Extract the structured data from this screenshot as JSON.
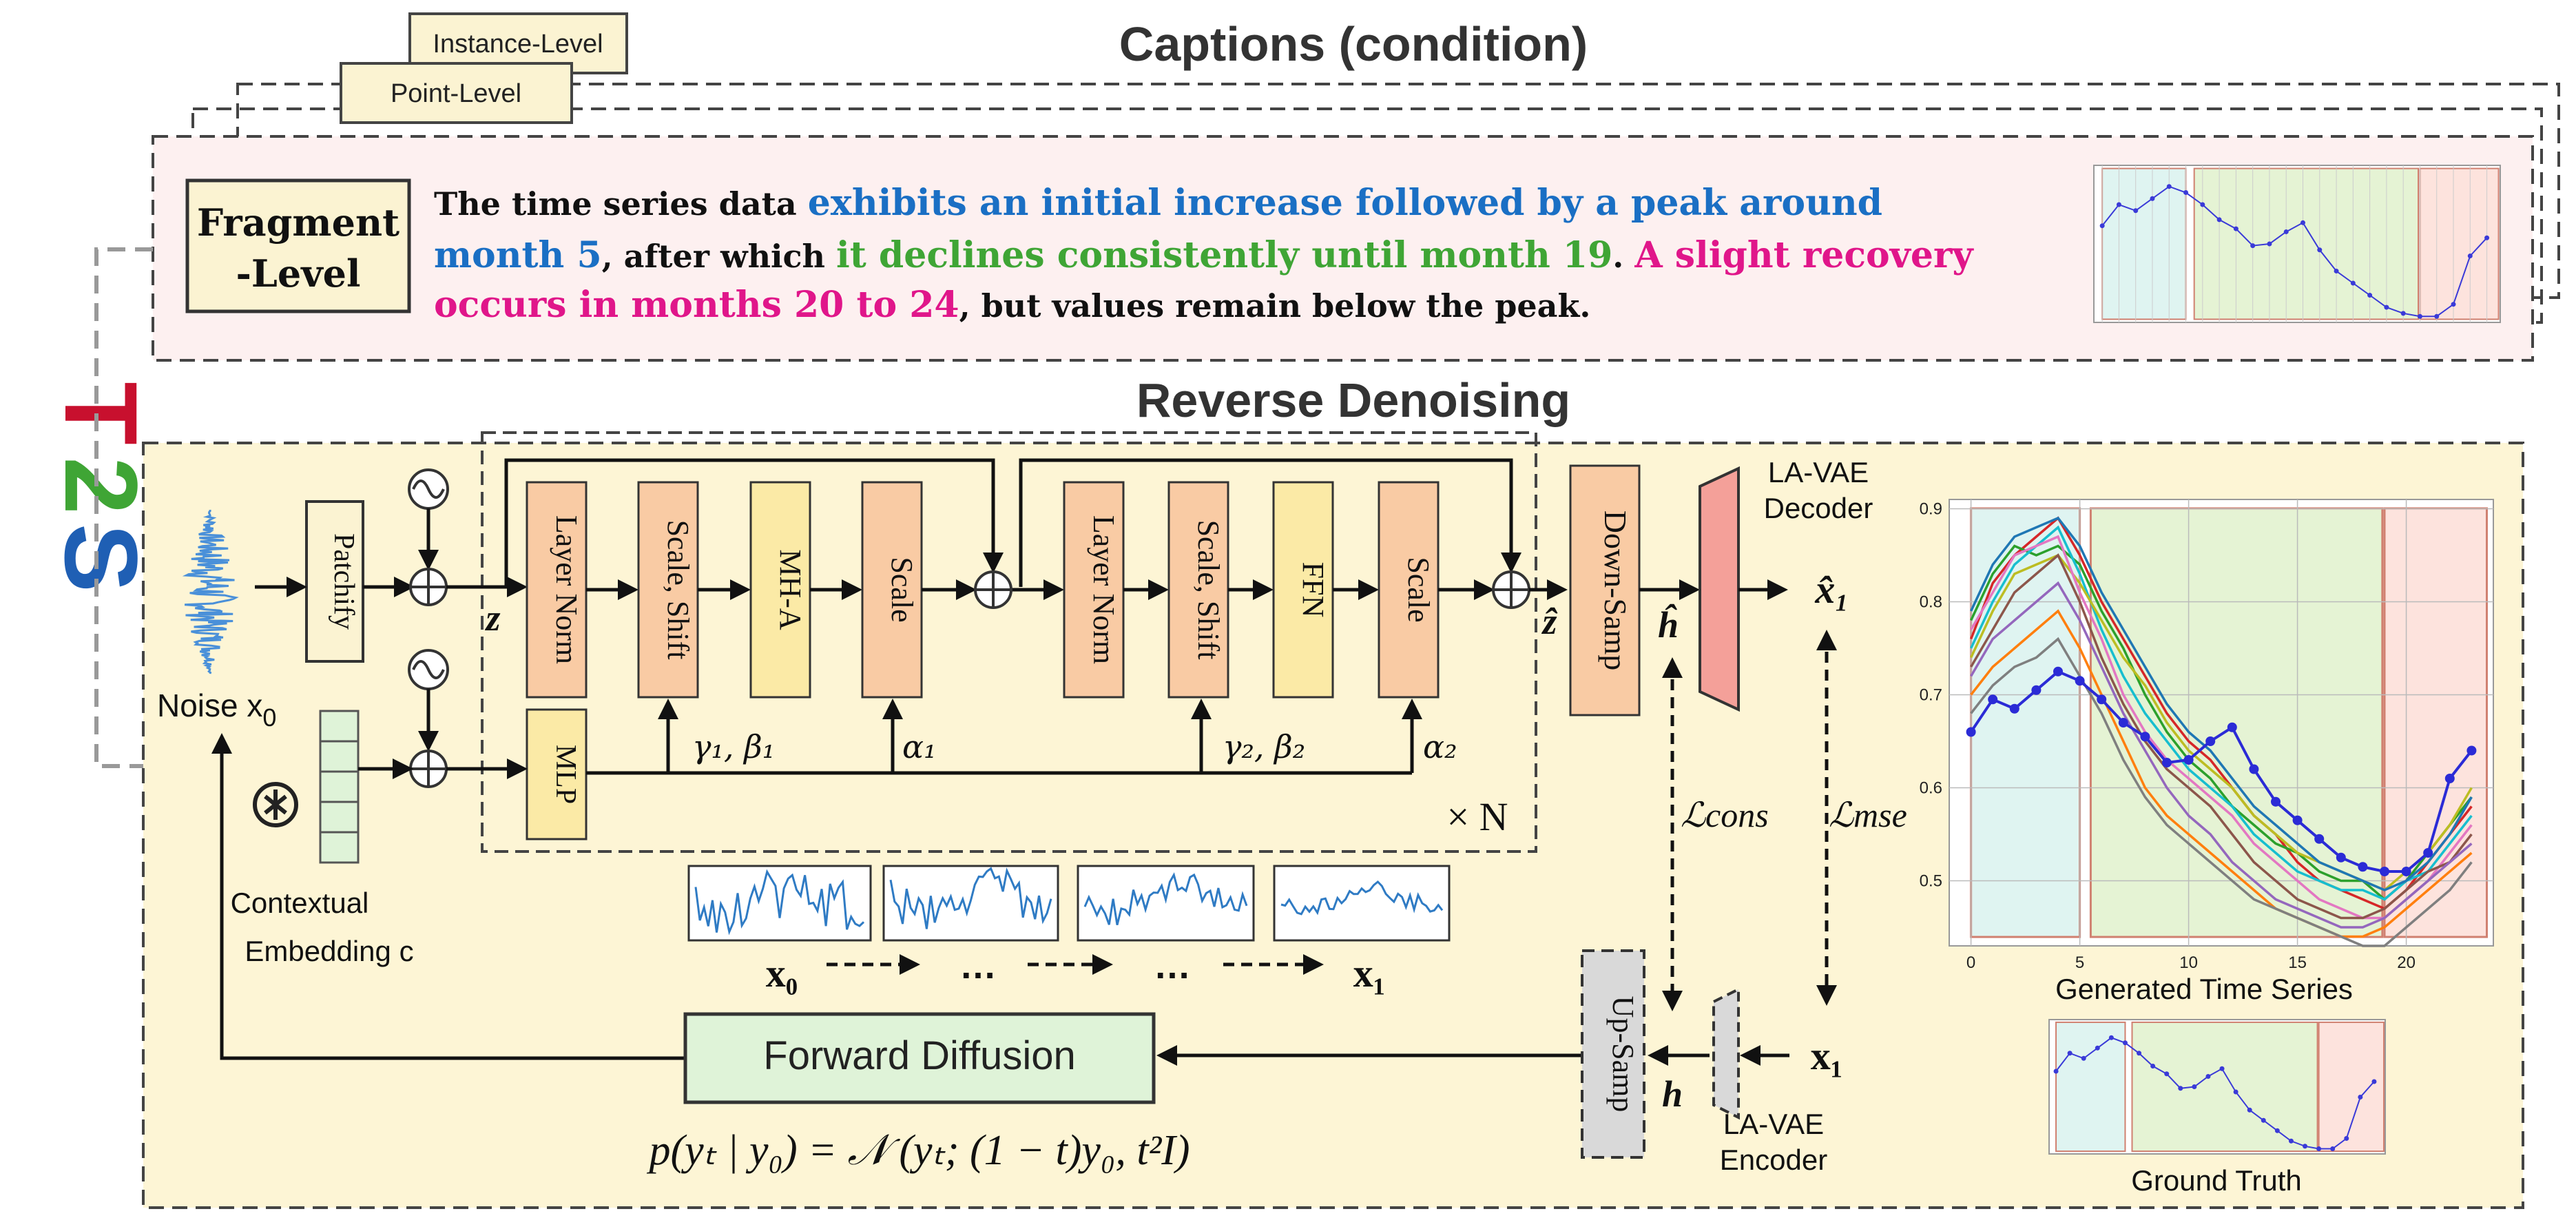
{
  "captions": {
    "title": "Captions (condition)",
    "levels": [
      "Instance-Level",
      "Point-Level"
    ],
    "fragment_label": [
      "Fragment",
      "-Level"
    ],
    "text_lines": [
      [
        {
          "t": "The time series data ",
          "c": "black"
        },
        {
          "t": "exhibits an initial increase followed by a peak around",
          "c": "blue"
        }
      ],
      [
        {
          "t": "month 5",
          "c": "blue"
        },
        {
          "t": ", after which ",
          "c": "black"
        },
        {
          "t": "it declines consistently until month 19",
          "c": "green"
        },
        {
          "t": ". ",
          "c": "black"
        },
        {
          "t": "A slight recovery",
          "c": "pink"
        }
      ],
      [
        {
          "t": "occurs in months 20 to 24",
          "c": "pink"
        },
        {
          "t": ", but values remain below the peak.",
          "c": "black"
        }
      ]
    ]
  },
  "side_logo": {
    "letters": [
      "T",
      "2",
      "S"
    ]
  },
  "denoise": {
    "title": "Reverse Denoising",
    "noise_label": "Noise x",
    "noise_sub": "0",
    "patchify": "Patchify",
    "z_label": "z",
    "blocks": [
      "Layer Norm",
      "Scale, Shift",
      "MH-A",
      "Scale",
      "Layer Norm",
      "Scale, Shift",
      "FFN",
      "Scale"
    ],
    "mlp": "MLP",
    "gamma1": "γ₁, β₁",
    "alpha1": "α₁",
    "gamma2": "γ₂, β₂",
    "alpha2": "α₂",
    "times_n": "× N",
    "zhat": "ẑ",
    "downsamp": "Down-Samp",
    "hhat": "ĥ",
    "decoder": [
      "LA-VAE",
      "Decoder"
    ],
    "xhat1": "x̂₁",
    "lcons": "ℒcons",
    "lmse": "ℒmse",
    "context": [
      "Contextual",
      "Embedding c"
    ],
    "seq_x0": "x₀",
    "seq_x1": "x₁",
    "dots": "…",
    "upsamp": "Up-Samp",
    "h": "h",
    "x1": "x₁",
    "encoder": [
      "LA-VAE",
      "Encoder"
    ],
    "forward": "Forward Diffusion",
    "formula": "p(yₜ | y₀) = 𝒩 (yₜ; (1 − t)y₀, t²I)"
  },
  "colors": {
    "blue_text": "#1a6fc4",
    "green_text": "#3fa535",
    "pink_text": "#e0168a",
    "orange_box": "#f9cba4",
    "yellow_box": "#fbeaa6",
    "panel_bg": "#fdf5d5",
    "caption_bg": "#fdf0f0",
    "forward_bg": "#dff3d8",
    "decoder": "#f4a099",
    "gray_box": "#d9d9d9"
  },
  "chart_data": [
    {
      "type": "line",
      "title": "Generated Time Series",
      "x": [
        0,
        1,
        2,
        3,
        4,
        5,
        6,
        7,
        8,
        9,
        10,
        11,
        12,
        13,
        14,
        15,
        16,
        17,
        18,
        19,
        20,
        21,
        22,
        23
      ],
      "xticks": [
        0,
        5,
        10,
        15,
        20
      ],
      "yticks": [
        0.5,
        0.6,
        0.7,
        0.8,
        0.9
      ],
      "ylim": [
        0.43,
        0.91
      ],
      "xlim": [
        -1,
        24
      ],
      "regions": [
        [
          0,
          5
        ],
        [
          5.5,
          18.9
        ],
        [
          19,
          23.7
        ]
      ],
      "highlight": {
        "y": [
          0.66,
          0.695,
          0.685,
          0.705,
          0.725,
          0.715,
          0.695,
          0.67,
          0.655,
          0.627,
          0.63,
          0.65,
          0.665,
          0.62,
          0.585,
          0.565,
          0.545,
          0.525,
          0.515,
          0.51,
          0.51,
          0.53,
          0.61,
          0.64
        ]
      },
      "series": [
        {
          "values": [
            0.76,
            0.82,
            0.85,
            0.87,
            0.89,
            0.85,
            0.8,
            0.76,
            0.72,
            0.68,
            0.65,
            0.63,
            0.6,
            0.57,
            0.55,
            0.52,
            0.5,
            0.49,
            0.48,
            0.47,
            0.49,
            0.52,
            0.55,
            0.58
          ]
        },
        {
          "values": [
            0.78,
            0.83,
            0.86,
            0.85,
            0.86,
            0.84,
            0.79,
            0.75,
            0.7,
            0.66,
            0.63,
            0.61,
            0.58,
            0.56,
            0.54,
            0.53,
            0.51,
            0.5,
            0.5,
            0.48,
            0.5,
            0.53,
            0.56,
            0.59
          ]
        },
        {
          "values": [
            0.75,
            0.8,
            0.84,
            0.86,
            0.88,
            0.83,
            0.77,
            0.72,
            0.68,
            0.65,
            0.62,
            0.6,
            0.58,
            0.55,
            0.53,
            0.51,
            0.5,
            0.49,
            0.49,
            0.48,
            0.5,
            0.51,
            0.54,
            0.57
          ]
        },
        {
          "values": [
            0.74,
            0.79,
            0.83,
            0.84,
            0.85,
            0.82,
            0.78,
            0.74,
            0.71,
            0.67,
            0.64,
            0.62,
            0.6,
            0.57,
            0.55,
            0.53,
            0.52,
            0.51,
            0.5,
            0.49,
            0.51,
            0.53,
            0.56,
            0.6
          ]
        },
        {
          "values": [
            0.77,
            0.81,
            0.85,
            0.86,
            0.87,
            0.81,
            0.76,
            0.7,
            0.66,
            0.63,
            0.61,
            0.59,
            0.57,
            0.54,
            0.52,
            0.5,
            0.48,
            0.47,
            0.46,
            0.46,
            0.48,
            0.5,
            0.53,
            0.56
          ]
        },
        {
          "values": [
            0.73,
            0.77,
            0.81,
            0.83,
            0.85,
            0.8,
            0.74,
            0.69,
            0.65,
            0.62,
            0.6,
            0.58,
            0.55,
            0.52,
            0.5,
            0.48,
            0.47,
            0.46,
            0.46,
            0.47,
            0.49,
            0.51,
            0.52,
            0.55
          ]
        },
        {
          "values": [
            0.72,
            0.76,
            0.78,
            0.8,
            0.82,
            0.78,
            0.73,
            0.68,
            0.64,
            0.6,
            0.57,
            0.55,
            0.52,
            0.5,
            0.48,
            0.47,
            0.46,
            0.45,
            0.45,
            0.46,
            0.48,
            0.5,
            0.52,
            0.54
          ]
        },
        {
          "values": [
            0.7,
            0.73,
            0.75,
            0.77,
            0.79,
            0.75,
            0.7,
            0.65,
            0.6,
            0.57,
            0.55,
            0.53,
            0.51,
            0.49,
            0.47,
            0.46,
            0.45,
            0.44,
            0.44,
            0.45,
            0.47,
            0.49,
            0.51,
            0.53
          ]
        },
        {
          "values": [
            0.68,
            0.71,
            0.73,
            0.74,
            0.76,
            0.72,
            0.68,
            0.63,
            0.59,
            0.56,
            0.54,
            0.52,
            0.5,
            0.48,
            0.47,
            0.46,
            0.45,
            0.44,
            0.43,
            0.43,
            0.45,
            0.47,
            0.49,
            0.52
          ]
        },
        {
          "values": [
            0.79,
            0.84,
            0.87,
            0.88,
            0.89,
            0.86,
            0.81,
            0.77,
            0.73,
            0.69,
            0.66,
            0.64,
            0.61,
            0.58,
            0.56,
            0.54,
            0.52,
            0.51,
            0.5,
            0.49,
            0.5,
            0.52,
            0.55,
            0.59
          ]
        }
      ],
      "series_colors": [
        "#d62728",
        "#2ca02c",
        "#17becf",
        "#bcbd22",
        "#e377c2",
        "#8c564b",
        "#9467bd",
        "#ff7f0e",
        "#7f7f7f",
        "#1f77b4"
      ]
    },
    {
      "type": "line",
      "title": "Ground Truth",
      "x": [
        0,
        1,
        2,
        3,
        4,
        5,
        6,
        7,
        8,
        9,
        10,
        11,
        12,
        13,
        14,
        15,
        16,
        17,
        18,
        19,
        20,
        21,
        22,
        23
      ],
      "ylim": [
        0.5,
        0.76
      ],
      "regions": [
        [
          0,
          5
        ],
        [
          5.5,
          18.9
        ],
        [
          19,
          23.7
        ]
      ],
      "values": [
        0.66,
        0.695,
        0.685,
        0.705,
        0.725,
        0.715,
        0.695,
        0.67,
        0.655,
        0.627,
        0.63,
        0.65,
        0.665,
        0.62,
        0.585,
        0.565,
        0.545,
        0.525,
        0.515,
        0.51,
        0.51,
        0.53,
        0.61,
        0.64
      ]
    },
    {
      "type": "line",
      "title": "",
      "x": [
        0,
        1,
        2,
        3,
        4,
        5,
        6,
        7,
        8,
        9,
        10,
        11,
        12,
        13,
        14,
        15,
        16,
        17,
        18,
        19,
        20,
        21,
        22,
        23
      ],
      "ylim": [
        0.5,
        0.76
      ],
      "regions": [
        [
          0,
          5
        ],
        [
          5.5,
          18.9
        ],
        [
          19,
          23.7
        ]
      ],
      "values": [
        0.66,
        0.695,
        0.685,
        0.705,
        0.725,
        0.715,
        0.695,
        0.67,
        0.655,
        0.627,
        0.63,
        0.65,
        0.665,
        0.62,
        0.585,
        0.565,
        0.545,
        0.525,
        0.515,
        0.51,
        0.51,
        0.53,
        0.61,
        0.64
      ]
    }
  ]
}
